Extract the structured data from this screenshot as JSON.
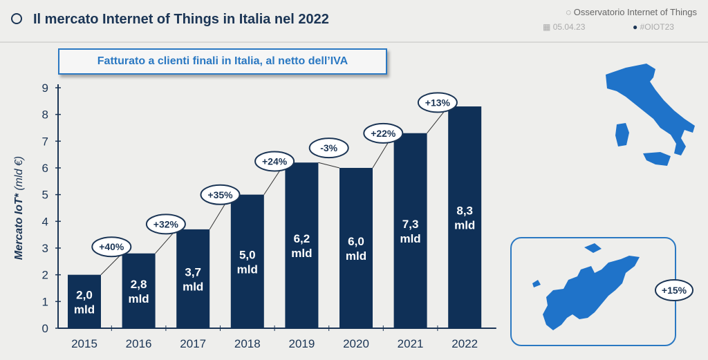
{
  "header": {
    "title": "Il mercato Internet of Things in Italia nel 2022",
    "organization": "Osservatorio Internet of Things",
    "date": "05.04.23",
    "hashtag": "#OIOT23",
    "icons": [
      "magnifier-logo-icon",
      "calendar-icon",
      "twitter-icon"
    ]
  },
  "subtitle": "Fatturato a clienti finali in Italia, al netto dell’IVA",
  "europe_growth": "+15%",
  "colors": {
    "bar": "#0f3057",
    "accent": "#2a78c2",
    "map": "#1f73c9"
  },
  "chart_data": {
    "type": "bar",
    "ylabel": "Mercato IoT* (mld €)",
    "ylabel_main": "Mercato IoT*",
    "ylabel_unit": "(mld €)",
    "ylim": [
      0,
      9
    ],
    "yticks": [
      "0",
      "1",
      "2",
      "3",
      "4",
      "5",
      "6",
      "7",
      "8",
      "9"
    ],
    "categories": [
      "2015",
      "2016",
      "2017",
      "2018",
      "2019",
      "2020",
      "2021",
      "2022"
    ],
    "values": [
      2.0,
      2.8,
      3.7,
      5.0,
      6.2,
      6.0,
      7.3,
      8.3
    ],
    "value_labels": [
      "2,0",
      "2,8",
      "3,7",
      "5,0",
      "6,2",
      "6,0",
      "7,3",
      "8,3"
    ],
    "unit_label": "mld",
    "growth_labels": [
      "+40%",
      "+32%",
      "+35%",
      "+24%",
      "-3%",
      "+22%",
      "+13%"
    ],
    "grid": false
  }
}
